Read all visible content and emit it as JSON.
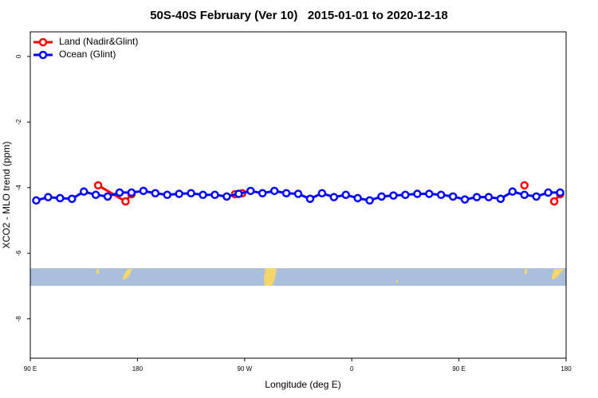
{
  "chart_data": {
    "type": "line",
    "title": "50S-40S February (Ver 10)   2015-01-01 to 2020-12-18",
    "xlabel": "Longitude (deg E)",
    "ylabel": "XCO2 - MLO trend (ppm)",
    "xlim": [
      90,
      540
    ],
    "xticks": [
      {
        "value": 90,
        "label": "90 E"
      },
      180,
      {
        "value": 270,
        "label": "90 W"
      },
      {
        "value": 360,
        "label": "0"
      },
      {
        "value": 450,
        "label": "90 E"
      },
      {
        "value": 540,
        "label": "180"
      }
    ],
    "ylim": [
      -9.2,
      0.75
    ],
    "yticks": [
      0,
      -2,
      -4,
      -6,
      -8
    ],
    "legend": "top-left",
    "series": [
      {
        "name": "Land (Nadir&Glint)",
        "color": "#ff0000",
        "x": [
          147,
          170,
          175,
          null,
          262,
          268,
          null,
          505,
          null,
          530,
          535
        ],
        "values": [
          -3.93,
          -4.42,
          -4.2,
          null,
          -4.2,
          -4.17,
          null,
          -3.93,
          null,
          -4.42,
          -4.2
        ]
      },
      {
        "name": "Ocean (Glint)",
        "color": "#0000ff",
        "x": [
          95,
          105,
          115,
          125,
          135,
          145,
          155,
          165,
          175,
          185,
          195,
          205,
          215,
          225,
          235,
          245,
          255,
          265,
          275,
          285,
          295,
          305,
          315,
          325,
          335,
          345,
          355,
          365,
          375,
          385,
          395,
          405,
          415,
          425,
          435,
          445,
          455,
          465,
          475,
          485,
          495,
          505,
          515,
          525,
          535
        ],
        "values": [
          -4.39,
          -4.29,
          -4.32,
          -4.34,
          -4.12,
          -4.22,
          -4.27,
          -4.15,
          -4.15,
          -4.1,
          -4.17,
          -4.22,
          -4.19,
          -4.17,
          -4.22,
          -4.22,
          -4.27,
          -4.19,
          -4.1,
          -4.17,
          -4.1,
          -4.17,
          -4.19,
          -4.34,
          -4.17,
          -4.29,
          -4.22,
          -4.32,
          -4.39,
          -4.27,
          -4.24,
          -4.22,
          -4.19,
          -4.19,
          -4.22,
          -4.27,
          -4.36,
          -4.29,
          -4.29,
          -4.34,
          -4.12,
          -4.22,
          -4.27,
          -4.15,
          -4.15
        ]
      }
    ]
  }
}
